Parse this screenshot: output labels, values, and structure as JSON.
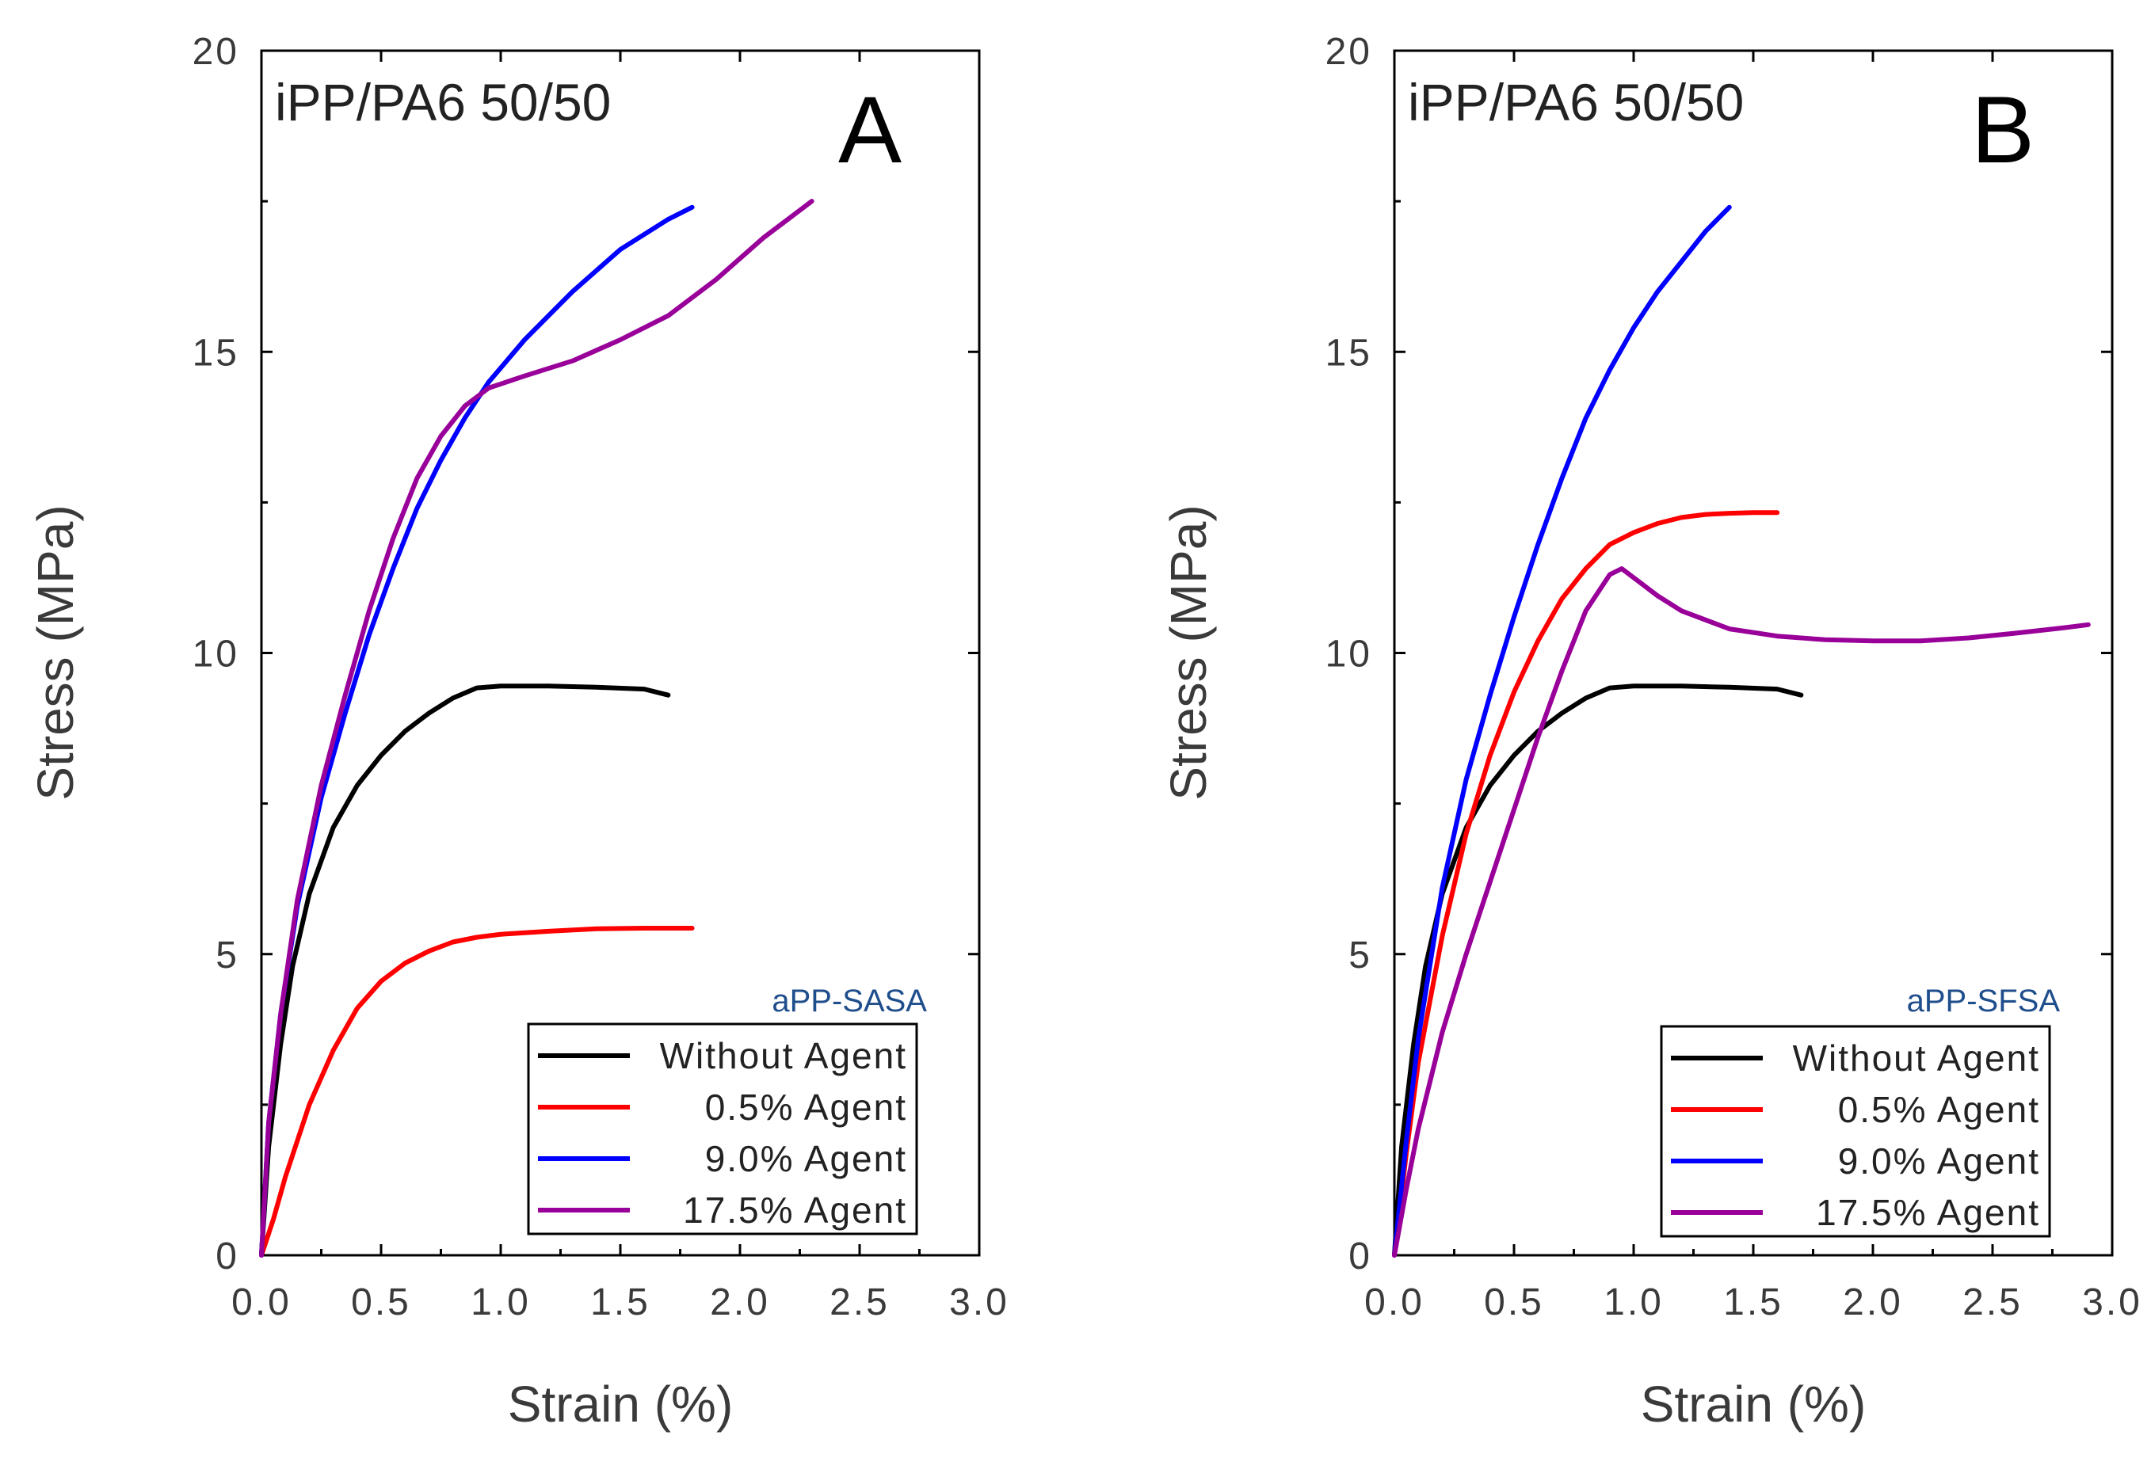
{
  "chart_data": [
    {
      "type": "line",
      "panel_label": "A",
      "title": "iPP/PA6 50/50",
      "xlabel": "Strain (%)",
      "ylabel": "Stress (MPa)",
      "xlim": [
        0,
        3.0
      ],
      "ylim": [
        0,
        20
      ],
      "xticks": [
        "0.0",
        "0.5",
        "1.0",
        "1.5",
        "2.0",
        "2.5",
        "3.0"
      ],
      "yticks": [
        "0",
        "5",
        "10",
        "15",
        "20"
      ],
      "legend_caption": "aPP-SASA",
      "legend_position": "bottom-right",
      "series": [
        {
          "name": "Without Agent",
          "color": "#000000",
          "x": [
            0,
            0.03,
            0.08,
            0.13,
            0.2,
            0.3,
            0.4,
            0.5,
            0.6,
            0.7,
            0.8,
            0.9,
            1.0,
            1.2,
            1.4,
            1.6,
            1.7
          ],
          "y": [
            0,
            1.8,
            3.5,
            4.8,
            6.0,
            7.1,
            7.8,
            8.3,
            8.7,
            9.0,
            9.25,
            9.42,
            9.45,
            9.45,
            9.43,
            9.4,
            9.3
          ]
        },
        {
          "name": "0.5% Agent",
          "color": "#ff0000",
          "x": [
            0,
            0.05,
            0.1,
            0.2,
            0.3,
            0.4,
            0.5,
            0.6,
            0.7,
            0.8,
            0.9,
            1.0,
            1.2,
            1.4,
            1.6,
            1.8
          ],
          "y": [
            0,
            0.6,
            1.3,
            2.5,
            3.4,
            4.1,
            4.55,
            4.85,
            5.05,
            5.2,
            5.28,
            5.33,
            5.38,
            5.42,
            5.43,
            5.43
          ]
        },
        {
          "name": "9.0% Agent",
          "color": "#0000ff",
          "x": [
            0,
            0.03,
            0.08,
            0.15,
            0.25,
            0.35,
            0.45,
            0.55,
            0.65,
            0.75,
            0.85,
            0.95,
            1.1,
            1.3,
            1.5,
            1.7,
            1.8
          ],
          "y": [
            0,
            2.2,
            4.0,
            5.8,
            7.6,
            9.0,
            10.3,
            11.4,
            12.4,
            13.2,
            13.9,
            14.5,
            15.2,
            16.0,
            16.7,
            17.2,
            17.4
          ]
        },
        {
          "name": "17.5% Agent",
          "color": "#990099",
          "x": [
            0,
            0.03,
            0.08,
            0.15,
            0.25,
            0.35,
            0.45,
            0.55,
            0.65,
            0.75,
            0.85,
            0.95,
            1.1,
            1.3,
            1.5,
            1.7,
            1.9,
            2.1,
            2.3
          ],
          "y": [
            0,
            2.2,
            4.0,
            5.9,
            7.8,
            9.3,
            10.7,
            11.9,
            12.9,
            13.6,
            14.1,
            14.4,
            14.6,
            14.85,
            15.2,
            15.6,
            16.2,
            16.9,
            17.5
          ]
        }
      ]
    },
    {
      "type": "line",
      "panel_label": "B",
      "title": "iPP/PA6 50/50",
      "xlabel": "Strain (%)",
      "ylabel": "Stress (MPa)",
      "xlim": [
        0,
        3.0
      ],
      "ylim": [
        0,
        20
      ],
      "xticks": [
        "0.0",
        "0.5",
        "1.0",
        "1.5",
        "2.0",
        "2.5",
        "3.0"
      ],
      "yticks": [
        "0",
        "5",
        "10",
        "15",
        "20"
      ],
      "legend_caption": "aPP-SFSA",
      "legend_position": "bottom-right",
      "series": [
        {
          "name": "Without Agent",
          "color": "#000000",
          "x": [
            0,
            0.03,
            0.08,
            0.13,
            0.2,
            0.3,
            0.4,
            0.5,
            0.6,
            0.7,
            0.8,
            0.9,
            1.0,
            1.2,
            1.4,
            1.6,
            1.7
          ],
          "y": [
            0,
            1.8,
            3.5,
            4.8,
            6.0,
            7.1,
            7.8,
            8.3,
            8.7,
            9.0,
            9.25,
            9.42,
            9.45,
            9.45,
            9.43,
            9.4,
            9.3
          ]
        },
        {
          "name": "0.5% Agent",
          "color": "#ff0000",
          "x": [
            0,
            0.05,
            0.1,
            0.2,
            0.3,
            0.4,
            0.5,
            0.6,
            0.7,
            0.8,
            0.9,
            1.0,
            1.1,
            1.2,
            1.3,
            1.4,
            1.5,
            1.6
          ],
          "y": [
            0,
            1.7,
            3.2,
            5.3,
            7.0,
            8.3,
            9.35,
            10.2,
            10.9,
            11.4,
            11.8,
            12.0,
            12.15,
            12.25,
            12.3,
            12.32,
            12.33,
            12.33
          ]
        },
        {
          "name": "9.0% Agent",
          "color": "#0000ff",
          "x": [
            0,
            0.05,
            0.1,
            0.2,
            0.3,
            0.4,
            0.5,
            0.6,
            0.7,
            0.8,
            0.9,
            1.0,
            1.1,
            1.2,
            1.3,
            1.4
          ],
          "y": [
            0,
            1.9,
            3.6,
            6.1,
            7.9,
            9.3,
            10.6,
            11.8,
            12.9,
            13.9,
            14.7,
            15.4,
            16.0,
            16.5,
            17.0,
            17.4
          ]
        },
        {
          "name": "17.5% Agent",
          "color": "#990099",
          "x": [
            0,
            0.05,
            0.1,
            0.2,
            0.3,
            0.4,
            0.5,
            0.6,
            0.7,
            0.8,
            0.9,
            0.95,
            1.0,
            1.1,
            1.2,
            1.4,
            1.6,
            1.8,
            2.0,
            2.2,
            2.4,
            2.6,
            2.8,
            2.9
          ],
          "y": [
            0,
            1.1,
            2.1,
            3.7,
            5.0,
            6.2,
            7.4,
            8.6,
            9.7,
            10.7,
            11.3,
            11.4,
            11.25,
            10.95,
            10.7,
            10.4,
            10.28,
            10.22,
            10.2,
            10.2,
            10.25,
            10.33,
            10.42,
            10.47
          ]
        }
      ]
    }
  ]
}
